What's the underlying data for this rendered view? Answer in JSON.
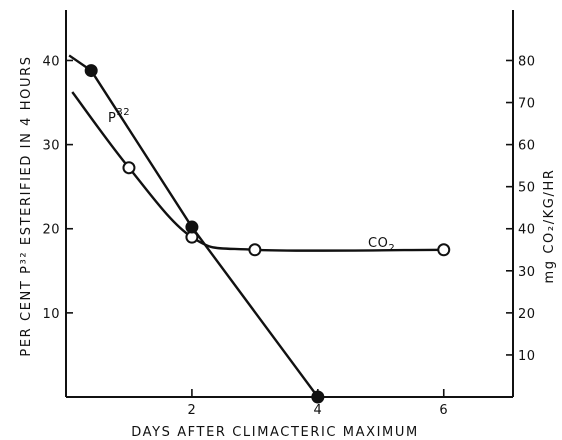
{
  "chart_data": {
    "type": "line",
    "xlabel": "DAYS AFTER CLIMACTERIC MAXIMUM",
    "ylabel_left": "PER CENT P³² ESTERIFIED IN 4 HOURS",
    "ylabel_right": "mg CO₂/KG/HR",
    "xlim": [
      0,
      7.1
    ],
    "ylim_left": [
      0,
      46
    ],
    "ylim_right": [
      0,
      92
    ],
    "x_ticks": [
      2,
      4,
      6
    ],
    "y_ticks_left": [
      10,
      20,
      30,
      40
    ],
    "y_ticks_right": [
      10,
      20,
      30,
      40,
      50,
      60,
      70,
      80
    ],
    "grid": false,
    "series": [
      {
        "name": "P³²",
        "axis": "left",
        "marker": "filled-circle",
        "x": [
          0.4,
          2,
          4
        ],
        "y": [
          38.8,
          20.2,
          0
        ]
      },
      {
        "name": "CO₂",
        "axis": "right",
        "marker": "open-circle",
        "x": [
          1,
          2,
          3,
          6
        ],
        "y": [
          54.5,
          38,
          35,
          35
        ],
        "curve_start": {
          "x": 0.1,
          "y": 72.5
        }
      }
    ],
    "series_labels": [
      {
        "text": "P",
        "sup": "32",
        "series": 0
      },
      {
        "text": "CO",
        "sub": "2",
        "series": 1
      }
    ]
  }
}
